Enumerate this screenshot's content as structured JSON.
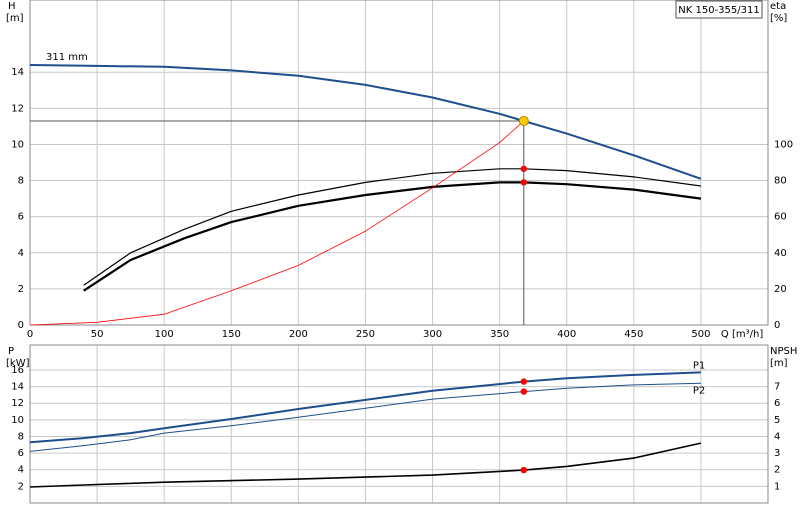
{
  "chart_data": [
    {
      "type": "line",
      "title": "NK 150-355/311",
      "xlabel": "Q [m³/h]",
      "ylabel": "H",
      "yunit": "[m]",
      "y2label": "eta",
      "y2unit": "[%]",
      "xlim": [
        0,
        550
      ],
      "xticks": [
        0,
        50,
        100,
        150,
        200,
        250,
        300,
        350,
        400,
        450,
        500
      ],
      "show_xtick_labels": true,
      "ylim": [
        0,
        18
      ],
      "yticks": [
        0,
        2,
        4,
        6,
        8,
        10,
        12,
        14
      ],
      "y2lim": [
        0,
        180
      ],
      "y2ticks": [
        0,
        20,
        40,
        60,
        80,
        100
      ],
      "grid": true,
      "series": [
        {
          "name": "311 mm",
          "color": "#1f4e8c",
          "width": 2,
          "label_at": "start",
          "x": [
            0,
            50,
            100,
            150,
            200,
            250,
            300,
            350,
            368,
            400,
            450,
            500
          ],
          "values": [
            14.4,
            14.35,
            14.3,
            14.1,
            13.8,
            13.3,
            12.6,
            11.7,
            11.3,
            10.6,
            9.4,
            8.1
          ]
        },
        {
          "color": "#000000",
          "width": 1.2,
          "axis": "y2",
          "x": [
            40,
            75,
            115,
            150,
            200,
            250,
            300,
            350,
            368,
            400,
            450,
            500
          ],
          "values": [
            22,
            40,
            53,
            63,
            72,
            79,
            84,
            86.5,
            86.5,
            85.5,
            82,
            77
          ]
        },
        {
          "color": "#000000",
          "width": 2.2,
          "axis": "y2",
          "x": [
            40,
            75,
            115,
            150,
            200,
            250,
            300,
            350,
            368,
            400,
            450,
            500
          ],
          "values": [
            19,
            36,
            48,
            57,
            66,
            72,
            76.5,
            79,
            79,
            78,
            75,
            70
          ]
        },
        {
          "color": "#ff0000",
          "width": 0.8,
          "x": [
            0,
            50,
            100,
            150,
            200,
            250,
            300,
            350,
            368
          ],
          "values": [
            0,
            0.15,
            0.6,
            1.9,
            3.3,
            5.2,
            7.6,
            10.1,
            11.3
          ]
        },
        {
          "style": "points",
          "color": "#ff0000",
          "axis": "y2",
          "x": [
            368,
            368
          ],
          "values": [
            86.5,
            79
          ]
        },
        {
          "style": "points",
          "color": "#ffcc00",
          "crosshair": true,
          "x": [
            368
          ],
          "values": [
            11.3
          ]
        }
      ]
    },
    {
      "type": "line",
      "ylabel": "P",
      "yunit": "[kW]",
      "y2label": "NPSH",
      "y2unit": "[m]",
      "xlim": [
        0,
        550
      ],
      "xticks": [
        0,
        50,
        100,
        150,
        200,
        250,
        300,
        350,
        400,
        450,
        500
      ],
      "show_xtick_labels": false,
      "ylim": [
        0,
        19
      ],
      "yticks": [
        2,
        4,
        6,
        8,
        10,
        12,
        14,
        16
      ],
      "y2lim": [
        0,
        9.5
      ],
      "y2ticks": [
        1,
        2,
        3,
        4,
        5,
        6,
        7
      ],
      "grid": true,
      "series": [
        {
          "name": "P1",
          "color": "#1f4e8c",
          "width": 2,
          "label_at": "end-above",
          "x": [
            0,
            40,
            75,
            100,
            150,
            200,
            250,
            300,
            368,
            400,
            450,
            500
          ],
          "values": [
            7.3,
            7.8,
            8.4,
            9.0,
            10.1,
            11.3,
            12.4,
            13.5,
            14.6,
            15.0,
            15.4,
            15.7
          ]
        },
        {
          "name": "P2",
          "color": "#1f4e8c",
          "width": 1,
          "label_at": "end-below",
          "x": [
            0,
            40,
            75,
            100,
            150,
            200,
            250,
            300,
            368,
            400,
            450,
            500
          ],
          "values": [
            6.2,
            6.9,
            7.6,
            8.4,
            9.3,
            10.3,
            11.4,
            12.5,
            13.4,
            13.8,
            14.2,
            14.4
          ]
        },
        {
          "color": "#000000",
          "width": 1.6,
          "axis": "y2",
          "x": [
            0,
            40,
            100,
            200,
            300,
            368,
            400,
            450,
            500
          ],
          "values": [
            0.96,
            1.08,
            1.25,
            1.44,
            1.68,
            1.98,
            2.2,
            2.7,
            3.6
          ]
        },
        {
          "style": "points",
          "color": "#ff0000",
          "x": [
            368,
            368
          ],
          "values": [
            14.6,
            13.4
          ]
        },
        {
          "style": "points",
          "color": "#ff0000",
          "axis": "y2",
          "x": [
            368
          ],
          "values": [
            1.98
          ]
        }
      ]
    }
  ]
}
